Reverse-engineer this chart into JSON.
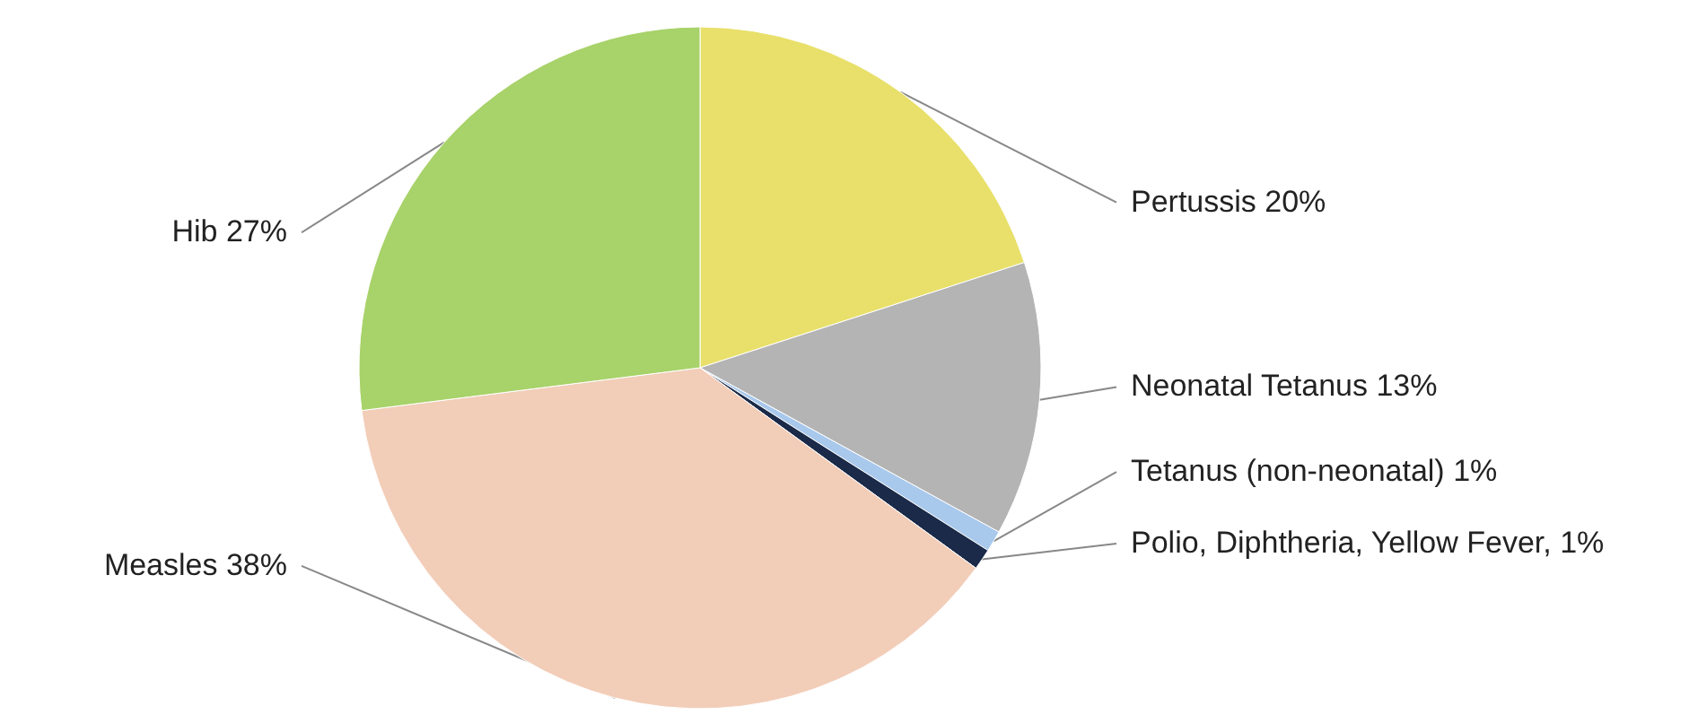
{
  "chart_data": {
    "type": "pie",
    "categories": [
      "Pertussis 20%",
      "Neonatal Tetanus 13%",
      "Tetanus (non-neonatal) 1%",
      "Polio, Diphtheria, Yellow Fever, 1%",
      "Measles 38%",
      "Hib 27%"
    ],
    "values": [
      20,
      13,
      1,
      1,
      38,
      27
    ],
    "colors": [
      "#e8e06a",
      "#b4b4b4",
      "#a8c8ec",
      "#1a2a48",
      "#f2cdb8",
      "#a8d26a"
    ]
  }
}
